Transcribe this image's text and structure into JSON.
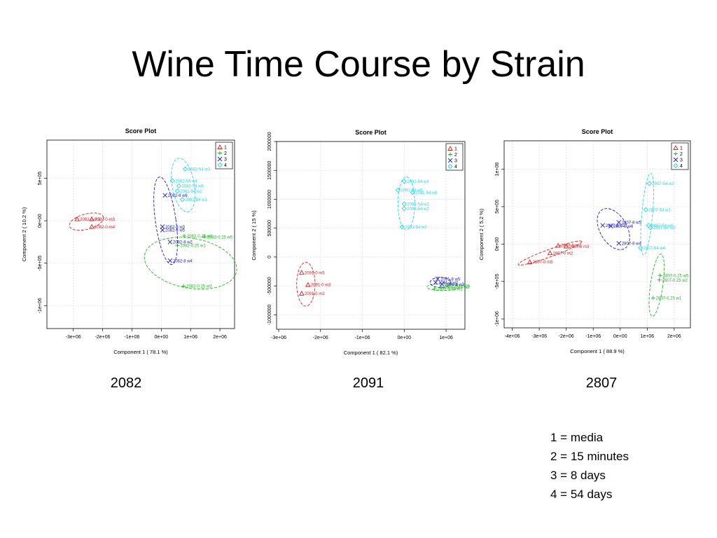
{
  "slide": {
    "title": "Wine Time Course by Strain",
    "captions": [
      "2082",
      "2091",
      "2807"
    ],
    "key": [
      "1 = media",
      "2 = 15 minutes",
      "3 = 8 days",
      "4 = 54 days"
    ]
  },
  "colors": {
    "1": "#e31a1c",
    "2": "#22b522",
    "3": "#1a1ad6",
    "4": "#22d8f0"
  },
  "chart_data": [
    {
      "type": "scatter",
      "title": "Score Plot",
      "xlabel": "Component 1 ( 78.1 %)",
      "ylabel": "Component 2 ( 10.2 %)",
      "xlim": [
        -3900000.0,
        2500000.0
      ],
      "ylim": [
        -1270000.0,
        950000.0
      ],
      "xticks": [
        -3000000.0,
        -2000000.0,
        -1000000.0,
        0,
        1000000.0,
        2000000.0
      ],
      "xtick_labels": [
        "-3e+06",
        "-2e+06",
        "-1e+06",
        "0e+00",
        "1e+06",
        "2e+06"
      ],
      "yticks": [
        -1000000.0,
        -500000.0,
        0,
        500000.0
      ],
      "ytick_labels": [
        "-1e+06",
        "-5e+05",
        "0e+00",
        "5e+05"
      ],
      "legend": [
        "1",
        "2",
        "3",
        "4"
      ],
      "legend_position": "top-right",
      "grid": true,
      "points": [
        {
          "g": "1",
          "x": -2870000.0,
          "y": 20000.0,
          "label": "2082-0-m1"
        },
        {
          "g": "1",
          "x": -2370000.0,
          "y": 20000.0,
          "label": "2082-0-m3"
        },
        {
          "g": "1",
          "x": -2370000.0,
          "y": -70000.0,
          "label": "2082-0-m4"
        },
        {
          "g": "2",
          "x": 780000.0,
          "y": -180000.0,
          "label": "2082-0.25 w2"
        },
        {
          "g": "2",
          "x": 1470000.0,
          "y": -190000.0,
          "label": "2082-0.25 w5"
        },
        {
          "g": "2",
          "x": 550000.0,
          "y": -290000.0,
          "label": "2082-0.25 w1"
        },
        {
          "g": "2",
          "x": 760000.0,
          "y": -770000.0,
          "label": "2082-0.25 w3"
        },
        {
          "g": "3",
          "x": 130000.0,
          "y": 300000.0,
          "label": "2082-8 w6"
        },
        {
          "g": "3",
          "x": 40000.0,
          "y": -70000.0,
          "label": "2082-8 w3"
        },
        {
          "g": "3",
          "x": 40000.0,
          "y": -110000.0,
          "label": "2082-8 w5"
        },
        {
          "g": "3",
          "x": 300000.0,
          "y": -250000.0,
          "label": "2082-8 w2"
        },
        {
          "g": "3",
          "x": 300000.0,
          "y": -470000.0,
          "label": "2082-8 w4"
        },
        {
          "g": "4",
          "x": 820000.0,
          "y": 610000.0,
          "label": "2082-54 w3"
        },
        {
          "g": "4",
          "x": 380000.0,
          "y": 470000.0,
          "label": "2082-54 w4"
        },
        {
          "g": "4",
          "x": 600000.0,
          "y": 410000.0,
          "label": "2082-54 w6"
        },
        {
          "g": "4",
          "x": 550000.0,
          "y": 350000.0,
          "label": "2082-54 w2"
        },
        {
          "g": "4",
          "x": 720000.0,
          "y": 250000.0,
          "label": "2082-54 w1"
        }
      ]
    },
    {
      "type": "scatter",
      "title": "Score Plot",
      "xlabel": "Component 1 ( 82.1 %)",
      "ylabel": "Component 2 ( 15 %)",
      "xlim": [
        -3050000.0,
        1450000.0
      ],
      "ylim": [
        -1250000.0,
        2000000.0
      ],
      "xticks": [
        -3000000.0,
        -2000000.0,
        -1000000.0,
        0,
        1000000.0
      ],
      "xtick_labels": [
        "-3e+06",
        "-2e+06",
        "-1e+06",
        "0e+00",
        "1e+06"
      ],
      "yticks": [
        -1000000,
        -500000,
        0,
        500000,
        1000000,
        1500000,
        2000000
      ],
      "ytick_labels": [
        "-1000000",
        "-500000",
        "0",
        "500000",
        "1000000",
        "1500000",
        "2000000"
      ],
      "legend": [
        "1",
        "2",
        "3",
        "4"
      ],
      "legend_position": "top-right",
      "grid": true,
      "points": [
        {
          "g": "1",
          "x": -2450000.0,
          "y": -270000.0,
          "label": "2091-0 m5"
        },
        {
          "g": "1",
          "x": -2300000.0,
          "y": -480000.0,
          "label": "2091-0 m3"
        },
        {
          "g": "1",
          "x": -2450000.0,
          "y": -630000.0,
          "label": "2091-0 m2"
        },
        {
          "g": "2",
          "x": 720000.0,
          "y": -550000.0,
          "label": "2091-0.25 w1"
        },
        {
          "g": "2",
          "x": 880000.0,
          "y": -520000.0,
          "label": "2091-0.25 w2"
        },
        {
          "g": "2",
          "x": 1050000.0,
          "y": -500000.0,
          "label": "2091-0.25 w3"
        },
        {
          "g": "3",
          "x": 800000.0,
          "y": -380000.0,
          "label": "2091-8 w5"
        },
        {
          "g": "3",
          "x": 750000.0,
          "y": -440000.0,
          "label": "2091-8 w2"
        },
        {
          "g": "3",
          "x": 900000.0,
          "y": -470000.0,
          "label": "2091-8 w3"
        },
        {
          "g": "4",
          "x": 0.0,
          "y": 1310000.0,
          "label": "2091-54 w4"
        },
        {
          "g": "4",
          "x": -150000.0,
          "y": 1160000.0,
          "label": "2091-54 w5"
        },
        {
          "g": "4",
          "x": 200000.0,
          "y": 1120000.0,
          "label": "2091-54 w6"
        },
        {
          "g": "4",
          "x": 0.0,
          "y": 920000.0,
          "label": "2091-54 w1"
        },
        {
          "g": "4",
          "x": 0.0,
          "y": 840000.0,
          "label": "2091-54 w2"
        },
        {
          "g": "4",
          "x": -50000.0,
          "y": 520000.0,
          "label": "2091-54 w3"
        }
      ]
    },
    {
      "type": "scatter",
      "title": "Score Plot",
      "xlabel": "Component 1 ( 88.9 %)",
      "ylabel": "Component 2 ( 5.2 %)",
      "xlim": [
        -4300000.0,
        2600000.0
      ],
      "ylim": [
        -1120000.0,
        1380000.0
      ],
      "xticks": [
        -4000000.0,
        -3000000.0,
        -2000000.0,
        -1000000.0,
        0,
        1000000.0,
        2000000.0
      ],
      "xtick_labels": [
        "-4e+06",
        "-3e+06",
        "-2e+06",
        "-1e+06",
        "0e+00",
        "1e+06",
        "2e+06"
      ],
      "yticks": [
        -1000000.0,
        -500000.0,
        0,
        500000.0,
        1000000.0
      ],
      "ytick_labels": [
        "-1e+06",
        "-5e+05",
        "0e+00",
        "5e+05",
        "1e+06"
      ],
      "legend": [
        "1",
        "2",
        "3",
        "4"
      ],
      "legend_position": "top-right",
      "grid": true,
      "points": [
        {
          "g": "1",
          "x": -2300000.0,
          "y": -20000.0,
          "label": "2807-0 m1"
        },
        {
          "g": "1",
          "x": -2000000.0,
          "y": -30000.0,
          "label": "2807-0 m3"
        },
        {
          "g": "1",
          "x": -2600000.0,
          "y": -120000.0,
          "label": "2807-0 m2"
        },
        {
          "g": "1",
          "x": -3350000.0,
          "y": -240000.0,
          "label": "2807-0 m5"
        },
        {
          "g": "2",
          "x": 1480000.0,
          "y": -420000.0,
          "label": "2807-0.25 w5"
        },
        {
          "g": "2",
          "x": 1450000.0,
          "y": -480000.0,
          "label": "2807-0.25 w2"
        },
        {
          "g": "2",
          "x": 1220000.0,
          "y": -720000.0,
          "label": "2807-0.25 w1"
        },
        {
          "g": "3",
          "x": -650000.0,
          "y": 250000.0,
          "label": "2807-8 w2"
        },
        {
          "g": "3",
          "x": -50000.0,
          "y": 290000.0,
          "label": "2807-8 w5"
        },
        {
          "g": "3",
          "x": -350000.0,
          "y": 240000.0,
          "label": "2807-8 w6"
        },
        {
          "g": "3",
          "x": -50000.0,
          "y": 10000.0,
          "label": "2807-8 w4"
        },
        {
          "g": "4",
          "x": 1080000.0,
          "y": 810000.0,
          "label": "2807-54 w3"
        },
        {
          "g": "4",
          "x": 950000.0,
          "y": 460000.0,
          "label": "2807-54 w1"
        },
        {
          "g": "4",
          "x": 1050000.0,
          "y": 250000.0,
          "label": "2807-54 w6"
        },
        {
          "g": "4",
          "x": 1120000.0,
          "y": 220000.0,
          "label": "2807-54 w2"
        },
        {
          "g": "4",
          "x": 750000.0,
          "y": -50000.0,
          "label": "2807-54 w4"
        }
      ]
    }
  ]
}
